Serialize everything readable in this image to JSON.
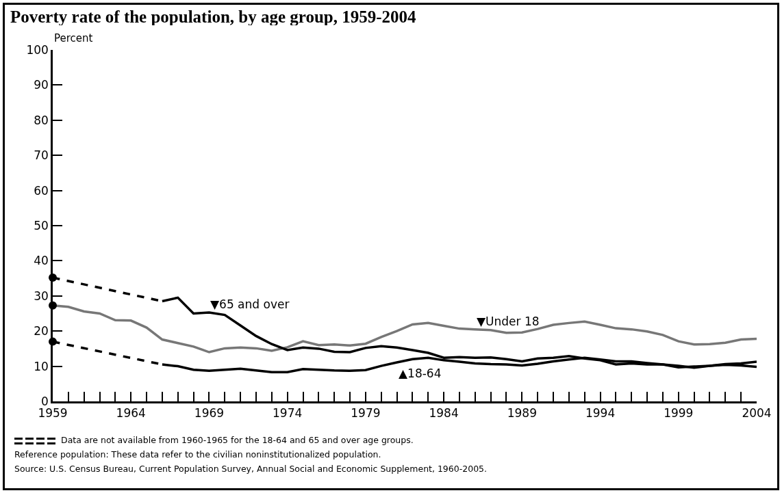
{
  "chart_data": {
    "type": "line",
    "title": "Poverty rate of the population, by age group, 1959-2004",
    "ylabel": "Percent",
    "x": [
      1959,
      1960,
      1961,
      1962,
      1963,
      1964,
      1965,
      1966,
      1967,
      1968,
      1969,
      1970,
      1971,
      1972,
      1973,
      1974,
      1975,
      1976,
      1977,
      1978,
      1979,
      1980,
      1981,
      1982,
      1983,
      1984,
      1985,
      1986,
      1987,
      1988,
      1989,
      1990,
      1991,
      1992,
      1993,
      1994,
      1995,
      1996,
      1997,
      1998,
      1999,
      2000,
      2001,
      2002,
      2003,
      2004
    ],
    "series": [
      {
        "color": "#777777",
        "values": [
          27.3,
          26.9,
          25.6,
          25.0,
          23.1,
          23.0,
          21.0,
          17.6,
          16.6,
          15.6,
          14.0,
          15.1,
          15.3,
          15.1,
          14.4,
          15.4,
          17.1,
          16.0,
          16.2,
          15.9,
          16.4,
          18.3,
          20.0,
          21.9,
          22.3,
          21.5,
          20.7,
          20.5,
          20.3,
          19.5,
          19.6,
          20.6,
          21.8,
          22.3,
          22.7,
          21.8,
          20.8,
          20.5,
          19.9,
          18.9,
          17.1,
          16.2,
          16.3,
          16.7,
          17.6,
          17.8
        ]
      },
      {
        "color": "#000000",
        "x": [
          1966,
          1967,
          1968,
          1969,
          1970,
          1971,
          1972,
          1973,
          1974,
          1975,
          1976,
          1977,
          1978,
          1979,
          1980,
          1981,
          1982,
          1983,
          1984,
          1985,
          1986,
          1987,
          1988,
          1989,
          1990,
          1991,
          1992,
          1993,
          1994,
          1995,
          1996,
          1997,
          1998,
          1999,
          2000,
          2001,
          2002,
          2003,
          2004
        ],
        "values": [
          28.5,
          29.5,
          25.0,
          25.3,
          24.6,
          21.6,
          18.6,
          16.3,
          14.6,
          15.3,
          15.0,
          14.1,
          14.0,
          15.2,
          15.7,
          15.3,
          14.6,
          13.8,
          12.4,
          12.6,
          12.4,
          12.5,
          12.0,
          11.4,
          12.2,
          12.4,
          12.9,
          12.2,
          11.7,
          10.5,
          10.8,
          10.5,
          10.5,
          9.7,
          9.9,
          10.1,
          10.4,
          10.2,
          9.8
        ]
      },
      {
        "color": "#000000",
        "x": [
          1966,
          1967,
          1968,
          1969,
          1970,
          1971,
          1972,
          1973,
          1974,
          1975,
          1976,
          1977,
          1978,
          1979,
          1980,
          1981,
          1982,
          1983,
          1984,
          1985,
          1986,
          1987,
          1988,
          1989,
          1990,
          1991,
          1992,
          1993,
          1994,
          1995,
          1996,
          1997,
          1998,
          1999,
          2000,
          2001,
          2002,
          2003,
          2004
        ],
        "values": [
          10.5,
          10.0,
          9.0,
          8.7,
          9.0,
          9.3,
          8.8,
          8.3,
          8.3,
          9.2,
          9.0,
          8.8,
          8.7,
          8.9,
          10.1,
          11.1,
          12.0,
          12.4,
          11.7,
          11.3,
          10.8,
          10.6,
          10.5,
          10.2,
          10.7,
          11.4,
          11.9,
          12.4,
          11.9,
          11.4,
          11.4,
          10.9,
          10.5,
          10.1,
          9.6,
          10.1,
          10.6,
          10.8,
          11.3
        ]
      },
      {
        "color": "#000000",
        "line_style": "dashed",
        "x": [
          1959,
          1966
        ],
        "values": [
          35.2,
          28.5
        ]
      },
      {
        "color": "#000000",
        "line_style": "dashed",
        "x": [
          1959,
          1966
        ],
        "values": [
          17.0,
          10.5
        ]
      },
      {
        "type": "scatter",
        "marker": "circle",
        "color": "#000000",
        "x": [
          1959,
          1959,
          1959
        ],
        "values": [
          27.3,
          35.2,
          17.0
        ]
      }
    ],
    "xlim": [
      1959,
      2004
    ],
    "xticks": [
      1959,
      {
        "value": 1960,
        "label": null
      },
      {
        "value": 1961,
        "label": null
      },
      {
        "value": 1962,
        "label": null
      },
      {
        "value": 1963,
        "label": null
      },
      1964,
      {
        "value": 1965,
        "label": null
      },
      {
        "value": 1966,
        "label": null
      },
      {
        "value": 1967,
        "label": null
      },
      {
        "value": 1968,
        "label": null
      },
      1969,
      {
        "value": 1970,
        "label": null
      },
      {
        "value": 1971,
        "label": null
      },
      {
        "value": 1972,
        "label": null
      },
      {
        "value": 1973,
        "label": null
      },
      1974,
      {
        "value": 1975,
        "label": null
      },
      {
        "value": 1976,
        "label": null
      },
      {
        "value": 1977,
        "label": null
      },
      {
        "value": 1978,
        "label": null
      },
      1979,
      {
        "value": 1980,
        "label": null
      },
      {
        "value": 1981,
        "label": null
      },
      {
        "value": 1982,
        "label": null
      },
      {
        "value": 1983,
        "label": null
      },
      1984,
      {
        "value": 1985,
        "label": null
      },
      {
        "value": 1986,
        "label": null
      },
      {
        "value": 1987,
        "label": null
      },
      {
        "value": 1988,
        "label": null
      },
      1989,
      {
        "value": 1990,
        "label": null
      },
      {
        "value": 1991,
        "label": null
      },
      {
        "value": 1992,
        "label": null
      },
      {
        "value": 1993,
        "label": null
      },
      1994,
      {
        "value": 1995,
        "label": null
      },
      {
        "value": 1996,
        "label": null
      },
      {
        "value": 1997,
        "label": null
      },
      {
        "value": 1998,
        "label": null
      },
      1999,
      {
        "value": 2000,
        "label": null
      },
      {
        "value": 2001,
        "label": null
      },
      {
        "value": 2002,
        "label": null
      },
      {
        "value": 2003,
        "label": null
      },
      2004
    ],
    "ylim": [
      0,
      100
    ],
    "yticks": [
      0,
      10,
      20,
      30,
      40,
      50,
      60,
      70,
      80,
      90,
      100
    ],
    "grid": false,
    "marker": "none",
    "line_style": "solid",
    "annotations": [
      {
        "text": "▼65 and over",
        "x": 1969,
        "y": 25.3
      },
      {
        "text": "▼Under 18",
        "x": 1986,
        "y": 20.5
      },
      {
        "text": "▲18-64",
        "x": 1981,
        "y": 11.1
      },
      "Data are not available from 1960-1965 for the 18-64 and 65 and over age groups.",
      "Reference population: These data refer to the civilian noninstitutionalized population.",
      "Source: U.S. Census Bureau, Current Population Survey, Annual Social and Economic Supplement, 1960-2005."
    ]
  }
}
